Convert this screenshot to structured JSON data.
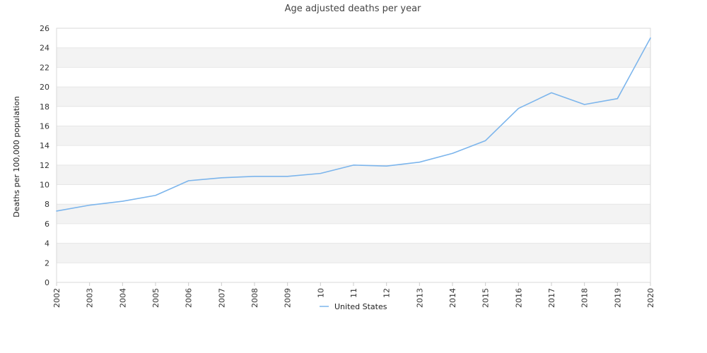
{
  "chart_data": {
    "type": "line",
    "title": "Age adjusted deaths per year",
    "xlabel": "",
    "ylabel": "Deaths per 100,000 population",
    "categories": [
      "2002",
      "2003",
      "2004",
      "2005",
      "2006",
      "2007",
      "2008",
      "2009",
      "10",
      "11",
      "12",
      "2013",
      "2014",
      "2015",
      "2016",
      "2017",
      "2018",
      "2019",
      "2020"
    ],
    "series": [
      {
        "name": "United States",
        "color": "#7cb5ec",
        "values": [
          7.3,
          7.9,
          8.3,
          8.9,
          10.4,
          10.7,
          10.85,
          10.85,
          11.15,
          12.0,
          11.9,
          12.3,
          13.2,
          14.5,
          17.8,
          19.4,
          18.2,
          18.8,
          25.0
        ]
      }
    ],
    "ylim": [
      0,
      26
    ],
    "yticks": [
      0,
      2,
      4,
      6,
      8,
      10,
      12,
      14,
      16,
      18,
      20,
      22,
      24,
      26
    ],
    "ytick_labels": [
      "0",
      "2",
      "4",
      "6",
      "8",
      "10",
      "12",
      "14",
      "16",
      "18",
      "20",
      "22",
      "24",
      "26"
    ],
    "band_fill": "#f3f3f3",
    "grid_color": "#e6e6e6",
    "legend_position": "bottom-center"
  }
}
